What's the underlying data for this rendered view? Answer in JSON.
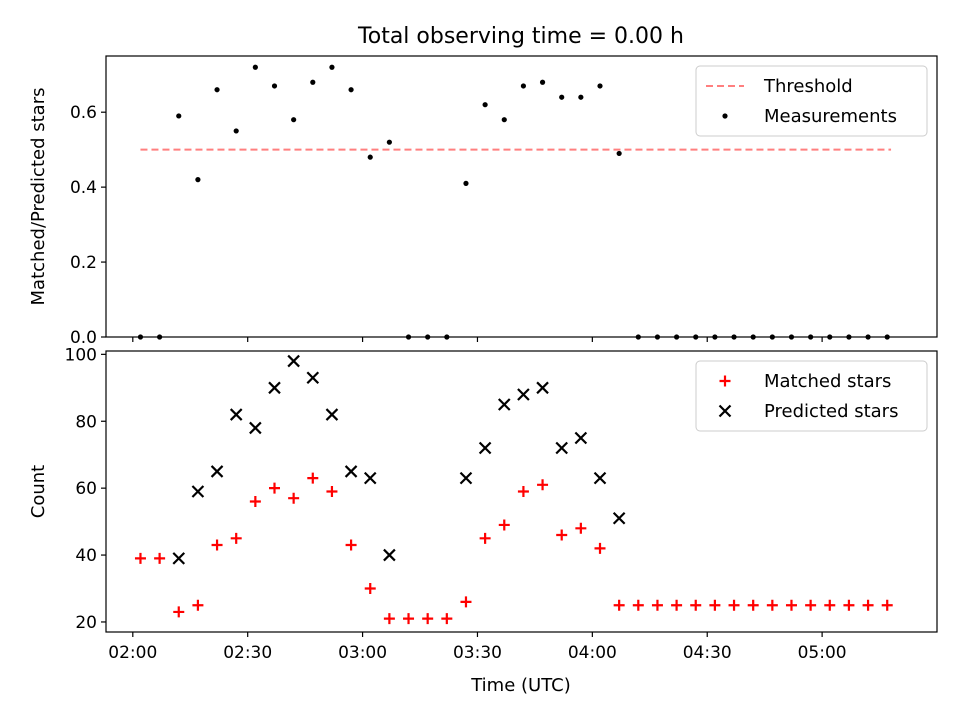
{
  "chart_data": {
    "title": "Total observing time = 0.00 h",
    "xlabel": "Time (UTC)",
    "x_ticks": [
      "02:00",
      "02:30",
      "03:00",
      "03:30",
      "04:00",
      "04:30",
      "05:00"
    ],
    "x_tick_minutes": [
      0,
      30,
      60,
      90,
      120,
      150,
      180
    ],
    "xlim_minutes": [
      -7,
      210
    ],
    "grid": false,
    "panels": [
      {
        "type": "scatter",
        "ylabel": "Matched/Predicted stars",
        "ylim": [
          0,
          0.75
        ],
        "y_ticks": [
          0.0,
          0.2,
          0.4,
          0.6
        ],
        "y_tick_labels": [
          "0.0",
          "0.2",
          "0.4",
          "0.6"
        ],
        "legend": "top-right",
        "threshold": {
          "name": "Threshold",
          "y": 0.5,
          "x_range_minutes": [
            2,
            198
          ],
          "color": "#ff7f7f"
        },
        "series": [
          {
            "name": "Measurements",
            "color": "#000000",
            "x_minutes": [
              2,
              7,
              12,
              17,
              22,
              27,
              32,
              37,
              42,
              47,
              52,
              57,
              62,
              67,
              72,
              77,
              82,
              87,
              92,
              97,
              102,
              107,
              112,
              117,
              122,
              127,
              132,
              137,
              142,
              147,
              152,
              157,
              162,
              167,
              172,
              177,
              182,
              187,
              192,
              197
            ],
            "y": [
              0.0,
              0.0,
              0.59,
              0.42,
              0.66,
              0.55,
              0.72,
              0.67,
              0.58,
              0.68,
              0.72,
              0.66,
              0.48,
              0.52,
              0.0,
              0.0,
              0.0,
              0.41,
              0.62,
              0.58,
              0.67,
              0.68,
              0.64,
              0.64,
              0.67,
              0.49,
              0.0,
              0.0,
              0.0,
              0.0,
              0.0,
              0.0,
              0.0,
              0.0,
              0.0,
              0.0,
              0.0,
              0.0,
              0.0,
              0.0
            ]
          }
        ]
      },
      {
        "type": "scatter",
        "ylabel": "Count",
        "ylim": [
          17,
          101
        ],
        "y_ticks": [
          20,
          40,
          60,
          80,
          100
        ],
        "y_tick_labels": [
          "20",
          "40",
          "60",
          "80",
          "100"
        ],
        "legend": "top-right",
        "series": [
          {
            "name": "Matched stars",
            "marker": "+",
            "color": "#ff0000",
            "x_minutes": [
              2,
              7,
              12,
              17,
              22,
              27,
              32,
              37,
              42,
              47,
              52,
              57,
              62,
              67,
              72,
              77,
              82,
              87,
              92,
              97,
              102,
              107,
              112,
              117,
              122,
              127,
              132,
              137,
              142,
              147,
              152,
              157,
              162,
              167,
              172,
              177,
              182,
              187,
              192,
              197
            ],
            "y": [
              39,
              39,
              23,
              25,
              43,
              45,
              56,
              60,
              57,
              63,
              59,
              43,
              30,
              21,
              21,
              21,
              21,
              26,
              45,
              49,
              59,
              61,
              46,
              48,
              42,
              25,
              25,
              25,
              25,
              25,
              25,
              25,
              25,
              25,
              25,
              25,
              25,
              25,
              25,
              25
            ]
          },
          {
            "name": "Predicted stars",
            "marker": "x",
            "color": "#000000",
            "x_minutes": [
              12,
              17,
              22,
              27,
              32,
              37,
              42,
              47,
              52,
              57,
              62,
              67,
              87,
              92,
              97,
              102,
              107,
              112,
              117,
              122,
              127
            ],
            "y": [
              39,
              59,
              65,
              82,
              78,
              90,
              98,
              93,
              82,
              65,
              63,
              40,
              63,
              72,
              85,
              88,
              90,
              72,
              75,
              63,
              51
            ]
          }
        ]
      }
    ]
  }
}
